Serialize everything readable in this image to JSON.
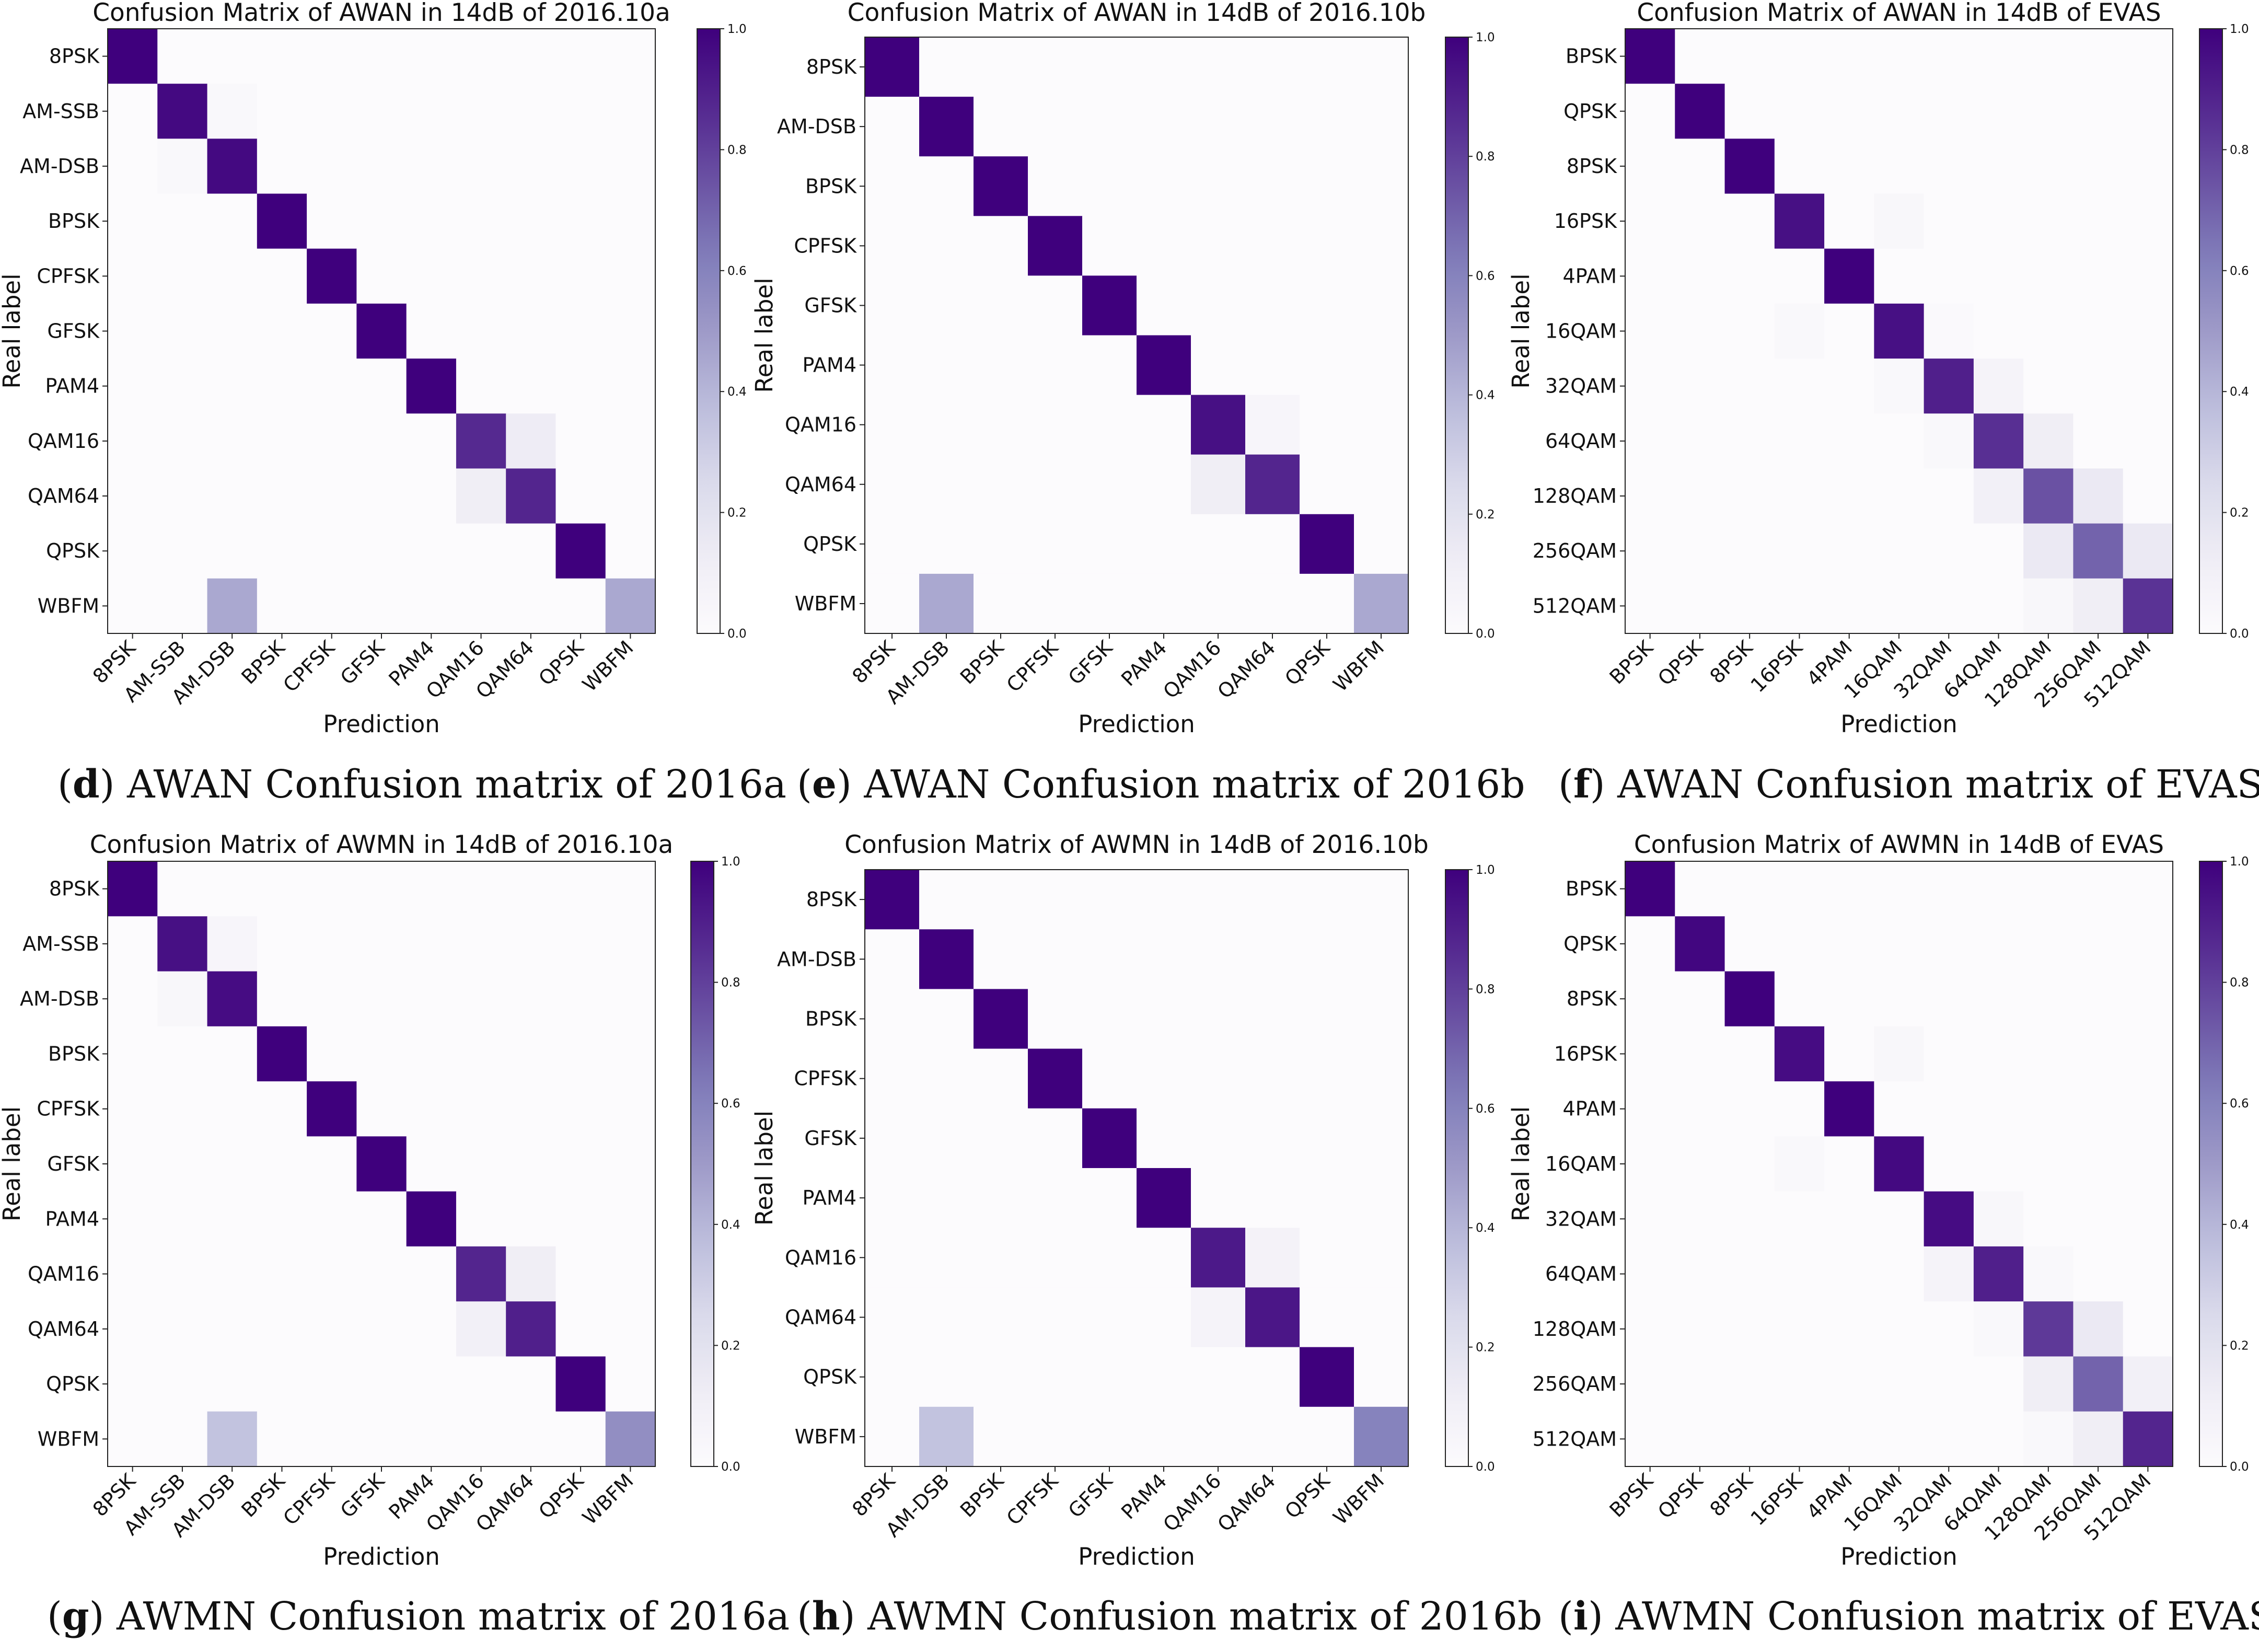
{
  "chart_data": [
    {
      "type": "heatmap",
      "title": "Confusion Matrix of AWAN in 14dB of 2016.10a",
      "xlabel": "Prediction",
      "ylabel": "Real label",
      "labels": [
        "8PSK",
        "AM-SSB",
        "AM-DSB",
        "BPSK",
        "CPFSK",
        "GFSK",
        "PAM4",
        "QAM16",
        "QAM64",
        "QPSK",
        "WBFM"
      ],
      "matrix": [
        [
          1.0,
          0,
          0,
          0,
          0,
          0,
          0,
          0,
          0,
          0,
          0
        ],
        [
          0,
          0.97,
          0.03,
          0,
          0,
          0,
          0,
          0,
          0,
          0,
          0
        ],
        [
          0,
          0.03,
          0.97,
          0,
          0,
          0,
          0,
          0,
          0,
          0,
          0
        ],
        [
          0,
          0,
          0,
          1.0,
          0,
          0,
          0,
          0,
          0,
          0,
          0
        ],
        [
          0,
          0,
          0,
          0,
          1.0,
          0,
          0,
          0,
          0,
          0,
          0
        ],
        [
          0,
          0,
          0,
          0,
          0,
          1.0,
          0,
          0,
          0,
          0,
          0
        ],
        [
          0,
          0,
          0,
          0,
          0,
          0,
          1.0,
          0,
          0,
          0,
          0
        ],
        [
          0,
          0,
          0,
          0,
          0,
          0,
          0,
          0.87,
          0.13,
          0,
          0
        ],
        [
          0,
          0,
          0,
          0,
          0,
          0,
          0,
          0.12,
          0.88,
          0,
          0
        ],
        [
          0,
          0,
          0,
          0,
          0,
          0,
          0,
          0,
          0,
          1.0,
          0
        ],
        [
          0,
          0,
          0.45,
          0,
          0,
          0,
          0,
          0,
          0,
          0,
          0.45
        ]
      ],
      "colorbar": {
        "range": [
          0.0,
          1.0
        ],
        "ticks": [
          "0.0",
          "0.2",
          "0.4",
          "0.6",
          "0.8",
          "1.0"
        ]
      },
      "caption": {
        "letter": "d",
        "text": "AWAN Confusion matrix of 2016a"
      }
    },
    {
      "type": "heatmap",
      "title": "Confusion Matrix of AWAN in 14dB of 2016.10b",
      "xlabel": "Prediction",
      "ylabel": "Real label",
      "labels": [
        "8PSK",
        "AM-DSB",
        "BPSK",
        "CPFSK",
        "GFSK",
        "PAM4",
        "QAM16",
        "QAM64",
        "QPSK",
        "WBFM"
      ],
      "matrix": [
        [
          1.0,
          0,
          0,
          0,
          0,
          0,
          0,
          0,
          0,
          0
        ],
        [
          0,
          1.0,
          0,
          0,
          0,
          0,
          0,
          0,
          0,
          0
        ],
        [
          0,
          0,
          1.0,
          0,
          0,
          0,
          0,
          0,
          0,
          0
        ],
        [
          0,
          0,
          0,
          1.0,
          0,
          0,
          0,
          0,
          0,
          0
        ],
        [
          0,
          0,
          0,
          0,
          1.0,
          0,
          0,
          0,
          0,
          0
        ],
        [
          0,
          0,
          0,
          0,
          0,
          1.0,
          0,
          0,
          0,
          0
        ],
        [
          0,
          0,
          0,
          0,
          0,
          0,
          0.95,
          0.05,
          0,
          0
        ],
        [
          0,
          0,
          0,
          0,
          0,
          0,
          0.12,
          0.88,
          0,
          0
        ],
        [
          0,
          0,
          0,
          0,
          0,
          0,
          0,
          0,
          1.0,
          0
        ],
        [
          0,
          0.45,
          0,
          0,
          0,
          0,
          0,
          0,
          0,
          0.45
        ]
      ],
      "colorbar": {
        "range": [
          0.0,
          1.0
        ],
        "ticks": [
          "0.0",
          "0.2",
          "0.4",
          "0.6",
          "0.8",
          "1.0"
        ]
      },
      "caption": {
        "letter": "e",
        "text": "AWAN Confusion matrix of 2016b"
      }
    },
    {
      "type": "heatmap",
      "title": "Confusion Matrix of AWAN in 14dB of EVAS",
      "xlabel": "Prediction",
      "ylabel": "Real label",
      "labels": [
        "BPSK",
        "QPSK",
        "8PSK",
        "16PSK",
        "4PAM",
        "16QAM",
        "32QAM",
        "64QAM",
        "128QAM",
        "256QAM",
        "512QAM"
      ],
      "matrix": [
        [
          1.0,
          0,
          0,
          0,
          0,
          0,
          0,
          0,
          0,
          0,
          0
        ],
        [
          0,
          1.0,
          0,
          0,
          0,
          0,
          0,
          0,
          0,
          0,
          0
        ],
        [
          0,
          0,
          1.0,
          0,
          0,
          0,
          0,
          0,
          0,
          0,
          0
        ],
        [
          0,
          0,
          0,
          0.95,
          0,
          0.04,
          0,
          0,
          0,
          0,
          0
        ],
        [
          0,
          0,
          0,
          0,
          1.0,
          0,
          0,
          0,
          0,
          0,
          0
        ],
        [
          0,
          0,
          0,
          0.03,
          0,
          0.95,
          0.02,
          0,
          0,
          0,
          0
        ],
        [
          0,
          0,
          0,
          0,
          0,
          0.03,
          0.9,
          0.07,
          0,
          0,
          0
        ],
        [
          0,
          0,
          0,
          0,
          0,
          0,
          0.03,
          0.85,
          0.12,
          0,
          0
        ],
        [
          0,
          0,
          0,
          0,
          0,
          0,
          0,
          0.1,
          0.75,
          0.15,
          0
        ],
        [
          0,
          0,
          0,
          0,
          0,
          0,
          0,
          0,
          0.15,
          0.7,
          0.15
        ],
        [
          0,
          0,
          0,
          0,
          0,
          0,
          0,
          0,
          0.04,
          0.12,
          0.84
        ]
      ],
      "colorbar": {
        "range": [
          0.0,
          1.0
        ],
        "ticks": [
          "0.0",
          "0.2",
          "0.4",
          "0.6",
          "0.8",
          "1.0"
        ]
      },
      "caption": {
        "letter": "f",
        "text": "AWAN Confusion matrix of EVAS"
      }
    },
    {
      "type": "heatmap",
      "title": "Confusion Matrix of AWMN in 14dB of 2016.10a",
      "xlabel": "Prediction",
      "ylabel": "Real label",
      "labels": [
        "8PSK",
        "AM-SSB",
        "AM-DSB",
        "BPSK",
        "CPFSK",
        "GFSK",
        "PAM4",
        "QAM16",
        "QAM64",
        "QPSK",
        "WBFM"
      ],
      "matrix": [
        [
          1.0,
          0,
          0,
          0,
          0,
          0,
          0,
          0,
          0,
          0,
          0
        ],
        [
          0,
          0.95,
          0.05,
          0,
          0,
          0,
          0,
          0,
          0,
          0,
          0
        ],
        [
          0,
          0.04,
          0.96,
          0,
          0,
          0,
          0,
          0,
          0,
          0,
          0
        ],
        [
          0,
          0,
          0,
          1.0,
          0,
          0,
          0,
          0,
          0,
          0,
          0
        ],
        [
          0,
          0,
          0,
          0,
          1.0,
          0,
          0,
          0,
          0,
          0,
          0
        ],
        [
          0,
          0,
          0,
          0,
          0,
          1.0,
          0,
          0,
          0,
          0,
          0
        ],
        [
          0,
          0,
          0,
          0,
          0,
          0,
          1.0,
          0,
          0,
          0,
          0
        ],
        [
          0,
          0,
          0,
          0,
          0,
          0,
          0,
          0.88,
          0.12,
          0,
          0
        ],
        [
          0,
          0,
          0,
          0,
          0,
          0,
          0,
          0.1,
          0.9,
          0,
          0
        ],
        [
          0,
          0,
          0,
          0,
          0,
          0,
          0,
          0,
          0,
          1.0,
          0
        ],
        [
          0,
          0,
          0.35,
          0,
          0,
          0,
          0,
          0,
          0,
          0,
          0.55
        ]
      ],
      "colorbar": {
        "range": [
          0.0,
          1.0
        ],
        "ticks": [
          "0.0",
          "0.2",
          "0.4",
          "0.6",
          "0.8",
          "1.0"
        ]
      },
      "caption": {
        "letter": "g",
        "text": "AWMN Confusion matrix of 2016a"
      }
    },
    {
      "type": "heatmap",
      "title": "Confusion Matrix of AWMN in 14dB of 2016.10b",
      "xlabel": "Prediction",
      "ylabel": "Real label",
      "labels": [
        "8PSK",
        "AM-DSB",
        "BPSK",
        "CPFSK",
        "GFSK",
        "PAM4",
        "QAM16",
        "QAM64",
        "QPSK",
        "WBFM"
      ],
      "matrix": [
        [
          1.0,
          0,
          0,
          0,
          0,
          0,
          0,
          0,
          0,
          0
        ],
        [
          0,
          1.0,
          0,
          0,
          0,
          0,
          0,
          0,
          0,
          0
        ],
        [
          0,
          0,
          1.0,
          0,
          0,
          0,
          0,
          0,
          0,
          0
        ],
        [
          0,
          0,
          0,
          1.0,
          0,
          0,
          0,
          0,
          0,
          0
        ],
        [
          0,
          0,
          0,
          0,
          1.0,
          0,
          0,
          0,
          0,
          0
        ],
        [
          0,
          0,
          0,
          0,
          0,
          1.0,
          0,
          0,
          0,
          0
        ],
        [
          0,
          0,
          0,
          0,
          0,
          0,
          0.92,
          0.08,
          0,
          0
        ],
        [
          0,
          0,
          0,
          0,
          0,
          0,
          0.07,
          0.93,
          0,
          0
        ],
        [
          0,
          0,
          0,
          0,
          0,
          0,
          0,
          0,
          1.0,
          0
        ],
        [
          0,
          0.35,
          0,
          0,
          0,
          0,
          0,
          0,
          0,
          0.6
        ]
      ],
      "colorbar": {
        "range": [
          0.0,
          1.0
        ],
        "ticks": [
          "0.0",
          "0.2",
          "0.4",
          "0.6",
          "0.8",
          "1.0"
        ]
      },
      "caption": {
        "letter": "h",
        "text": "AWMN Confusion matrix of 2016b"
      }
    },
    {
      "type": "heatmap",
      "title": "Confusion Matrix of AWMN in 14dB of EVAS",
      "xlabel": "Prediction",
      "ylabel": "Real label",
      "labels": [
        "BPSK",
        "QPSK",
        "8PSK",
        "16PSK",
        "4PAM",
        "16QAM",
        "32QAM",
        "64QAM",
        "128QAM",
        "256QAM",
        "512QAM"
      ],
      "matrix": [
        [
          1.0,
          0,
          0,
          0,
          0,
          0,
          0,
          0,
          0,
          0,
          0
        ],
        [
          0,
          0.98,
          0,
          0,
          0,
          0,
          0,
          0,
          0,
          0,
          0
        ],
        [
          0,
          0,
          1.0,
          0,
          0,
          0,
          0,
          0,
          0,
          0,
          0
        ],
        [
          0,
          0,
          0,
          0.96,
          0,
          0.04,
          0,
          0,
          0,
          0,
          0
        ],
        [
          0,
          0,
          0,
          0,
          1.0,
          0,
          0,
          0,
          0,
          0,
          0
        ],
        [
          0,
          0,
          0,
          0.03,
          0,
          0.97,
          0,
          0,
          0,
          0,
          0
        ],
        [
          0,
          0,
          0,
          0,
          0,
          0,
          0.96,
          0.04,
          0,
          0,
          0
        ],
        [
          0,
          0,
          0,
          0,
          0,
          0,
          0.07,
          0.9,
          0.03,
          0,
          0
        ],
        [
          0,
          0,
          0,
          0,
          0,
          0,
          0,
          0.03,
          0.82,
          0.15,
          0
        ],
        [
          0,
          0,
          0,
          0,
          0,
          0,
          0,
          0,
          0.12,
          0.7,
          0.1
        ],
        [
          0,
          0,
          0,
          0,
          0,
          0,
          0,
          0,
          0.03,
          0.12,
          0.88
        ]
      ],
      "colorbar": {
        "range": [
          0.0,
          1.0
        ],
        "ticks": [
          "0.0",
          "0.2",
          "0.4",
          "0.6",
          "0.8",
          "1.0"
        ]
      },
      "caption": {
        "letter": "i",
        "text": "AWMN Confusion matrix of EVAS"
      }
    }
  ]
}
